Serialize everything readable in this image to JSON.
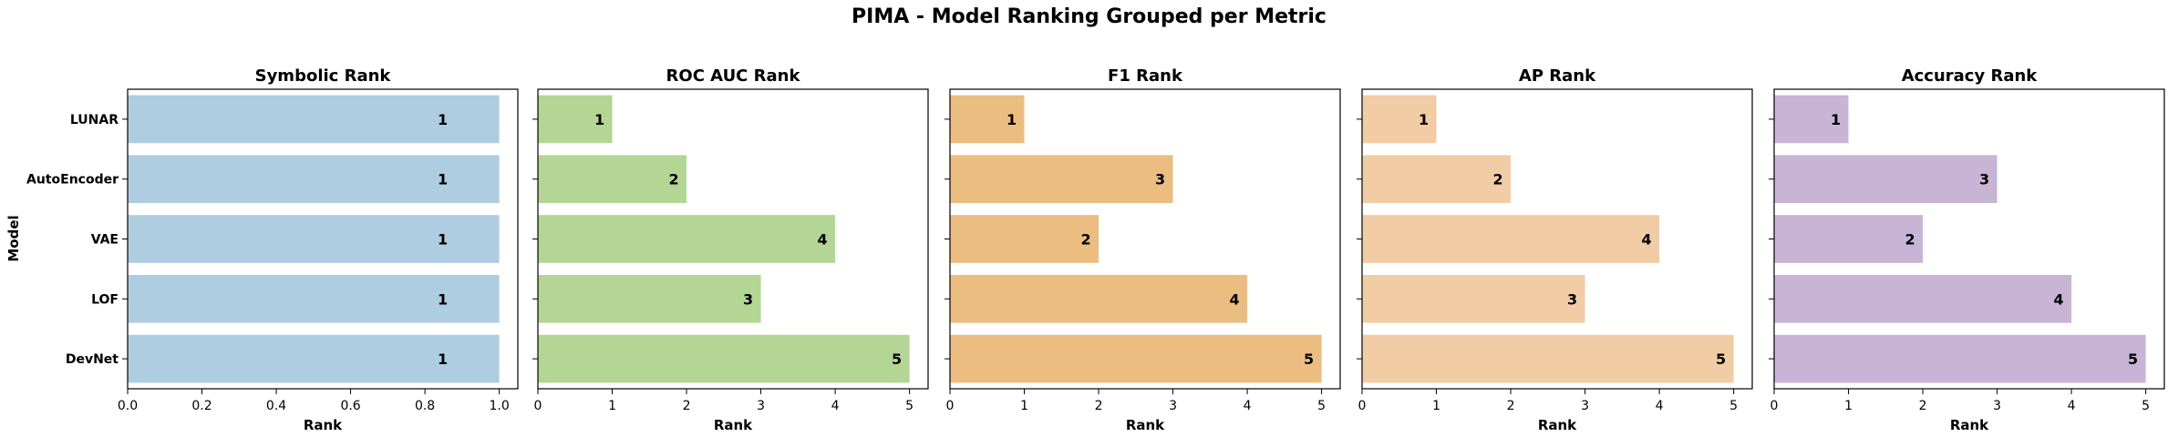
{
  "title": "PIMA - Model Ranking Grouped per Metric",
  "ylabel": "Model",
  "chart_data": [
    {
      "type": "bar",
      "orientation": "horizontal",
      "title": "Symbolic Rank",
      "xlabel": "Rank",
      "ylabel": "Model",
      "categories": [
        "LUNAR",
        "AutoEncoder",
        "VAE",
        "LOF",
        "DevNet"
      ],
      "values": [
        1,
        1,
        1,
        1,
        1
      ],
      "xlim": [
        0,
        1.05
      ],
      "xticks": [
        "0.0",
        "0.2",
        "0.4",
        "0.6",
        "0.8",
        "1.0"
      ],
      "xtick_values": [
        0,
        0.2,
        0.4,
        0.6,
        0.8,
        1.0
      ],
      "color": "#aecde0",
      "grid": false
    },
    {
      "type": "bar",
      "orientation": "horizontal",
      "title": "ROC AUC Rank",
      "xlabel": "Rank",
      "categories": [
        "LUNAR",
        "AutoEncoder",
        "VAE",
        "LOF",
        "DevNet"
      ],
      "values": [
        1,
        2,
        4,
        3,
        5
      ],
      "xlim": [
        0,
        5.25
      ],
      "xticks": [
        "0",
        "1",
        "2",
        "3",
        "4",
        "5"
      ],
      "xtick_values": [
        0,
        1,
        2,
        3,
        4,
        5
      ],
      "color": "#b3d694",
      "grid": false
    },
    {
      "type": "bar",
      "orientation": "horizontal",
      "title": "F1 Rank",
      "xlabel": "Rank",
      "categories": [
        "LUNAR",
        "AutoEncoder",
        "VAE",
        "LOF",
        "DevNet"
      ],
      "values": [
        1,
        3,
        2,
        4,
        5
      ],
      "xlim": [
        0,
        5.25
      ],
      "xticks": [
        "0",
        "1",
        "2",
        "3",
        "4",
        "5"
      ],
      "xtick_values": [
        0,
        1,
        2,
        3,
        4,
        5
      ],
      "color": "#ebbd80",
      "grid": false
    },
    {
      "type": "bar",
      "orientation": "horizontal",
      "title": "AP Rank",
      "xlabel": "Rank",
      "categories": [
        "LUNAR",
        "AutoEncoder",
        "VAE",
        "LOF",
        "DevNet"
      ],
      "values": [
        1,
        2,
        4,
        3,
        5
      ],
      "xlim": [
        0,
        5.25
      ],
      "xticks": [
        "0",
        "1",
        "2",
        "3",
        "4",
        "5"
      ],
      "xtick_values": [
        0,
        1,
        2,
        3,
        4,
        5
      ],
      "color": "#f2cca4",
      "grid": false
    },
    {
      "type": "bar",
      "orientation": "horizontal",
      "title": "Accuracy Rank",
      "xlabel": "Rank",
      "categories": [
        "LUNAR",
        "AutoEncoder",
        "VAE",
        "LOF",
        "DevNet"
      ],
      "values": [
        1,
        3,
        2,
        4,
        5
      ],
      "xlim": [
        0,
        5.25
      ],
      "xticks": [
        "0",
        "1",
        "2",
        "3",
        "4",
        "5"
      ],
      "xtick_values": [
        0,
        1,
        2,
        3,
        4,
        5
      ],
      "color": "#c8b4d4",
      "grid": false
    }
  ]
}
